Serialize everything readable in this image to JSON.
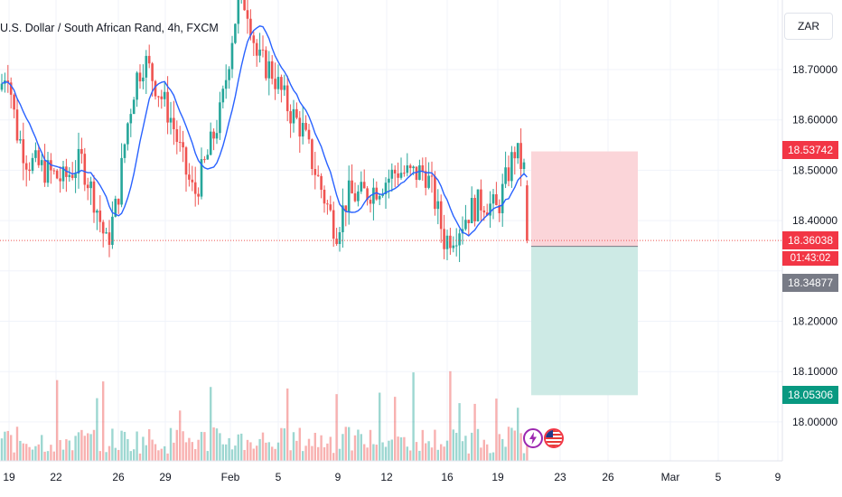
{
  "header": {
    "title": "U.S. Dollar / South African Rand, 4h, FXCM",
    "currency_button": "ZAR"
  },
  "price_tags": {
    "stop": {
      "value": "18.53742",
      "color": "#f23645"
    },
    "last": {
      "value": "18.36038",
      "color": "#f23645"
    },
    "countdown": {
      "value": "01:43:02",
      "color": "#f23645"
    },
    "entry": {
      "value": "18.34877",
      "color": "#787b86"
    },
    "target": {
      "value": "18.05306",
      "color": "#089981"
    }
  },
  "events": [
    {
      "icon": "lightning-icon",
      "color": "#9c27b0"
    },
    {
      "icon": "us-flag-icon",
      "color": "#f23645"
    }
  ],
  "colors": {
    "up": "#26a69a",
    "down": "#ef5350",
    "ma": "#2962ff",
    "grid": "#f0f3fa",
    "stop_zone": "#fbd5d9",
    "target_zone": "#cdeae5"
  },
  "chart_data": {
    "type": "candlestick",
    "title": "U.S. Dollar / South African Rand, 4h, FXCM",
    "y_ticks": [
      "18.70000",
      "18.60000",
      "18.50000",
      "18.40000",
      "18.20000",
      "18.10000",
      "18.00000"
    ],
    "y_tick_values": [
      18.7,
      18.6,
      18.5,
      18.4,
      18.2,
      18.1,
      18.0
    ],
    "x_ticks": [
      "19",
      "22",
      "26",
      "29",
      "Feb",
      "5",
      "9",
      "12",
      "16",
      "19",
      "23",
      "26",
      "Mar",
      "5",
      "9"
    ],
    "grid": true,
    "last_price": 18.36038,
    "position": {
      "type": "short",
      "entry": 18.34877,
      "stop": 18.53742,
      "target": 18.05306
    },
    "moving_average_shown": true,
    "volume_shown": true
  }
}
